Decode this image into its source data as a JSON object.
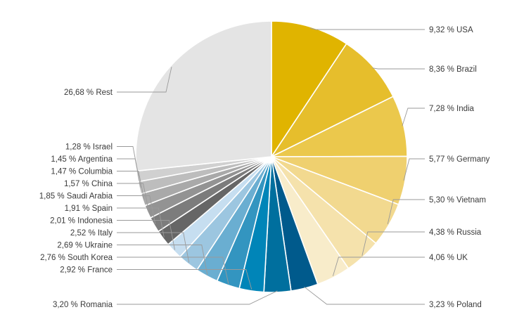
{
  "chart_data": {
    "type": "pie",
    "title": "",
    "start": "top",
    "direction": "clockwise",
    "legend": "none",
    "slices": [
      {
        "label": "9,32 % USA",
        "name": "USA",
        "value": 9.32,
        "color": "#e0b400"
      },
      {
        "label": "8,36 % Brazil",
        "name": "Brazil",
        "value": 8.36,
        "color": "#e6be2c"
      },
      {
        "label": "7,28 % India",
        "name": "India",
        "value": 7.28,
        "color": "#ebc84c"
      },
      {
        "label": "5,77 % Germany",
        "name": "Germany",
        "value": 5.77,
        "color": "#efd06f"
      },
      {
        "label": "5,30 % Vietnam",
        "name": "Vietnam",
        "value": 5.3,
        "color": "#f2d98f"
      },
      {
        "label": "4,38 % Russia",
        "name": "Russia",
        "value": 4.38,
        "color": "#f5e2ac"
      },
      {
        "label": "4,06 % UK",
        "name": "UK",
        "value": 4.06,
        "color": "#f8ecca"
      },
      {
        "label": "3,23 % Poland",
        "name": "Poland",
        "value": 3.23,
        "color": "#005a8c"
      },
      {
        "label": "3,20 % Romania",
        "name": "Romania",
        "value": 3.2,
        "color": "#006f9e"
      },
      {
        "label": "2,92 % France",
        "name": "France",
        "value": 2.92,
        "color": "#0085b8"
      },
      {
        "label": "2,76 % South Korea",
        "name": "South Korea",
        "value": 2.76,
        "color": "#3395c0"
      },
      {
        "label": "2,69 % Ukraine",
        "name": "Ukraine",
        "value": 2.69,
        "color": "#6aaed1"
      },
      {
        "label": "2,52 % Italy",
        "name": "Italy",
        "value": 2.52,
        "color": "#9cc6e0"
      },
      {
        "label": "2,01 % Indonesia",
        "name": "Indonesia",
        "value": 2.01,
        "color": "#c6def0"
      },
      {
        "label": "1,91 % Spain",
        "name": "Spain",
        "value": 1.91,
        "color": "#666666"
      },
      {
        "label": "1,85 % Saudi Arabia",
        "name": "Saudi Arabia",
        "value": 1.85,
        "color": "#7c7c7c"
      },
      {
        "label": "1,57 % China",
        "name": "China",
        "value": 1.57,
        "color": "#939393"
      },
      {
        "label": "1,47 % Columbia",
        "name": "Columbia",
        "value": 1.47,
        "color": "#a9a9a9"
      },
      {
        "label": "1,45 % Argentina",
        "name": "Argentina",
        "value": 1.45,
        "color": "#bdbdbd"
      },
      {
        "label": "1,28 % Israel",
        "name": "Israel",
        "value": 1.28,
        "color": "#d0d0d0"
      },
      {
        "label": "26,68 % Rest",
        "name": "Rest",
        "value": 26.68,
        "color": "#e4e4e4"
      }
    ],
    "leader_color": "#9a9a9a"
  }
}
